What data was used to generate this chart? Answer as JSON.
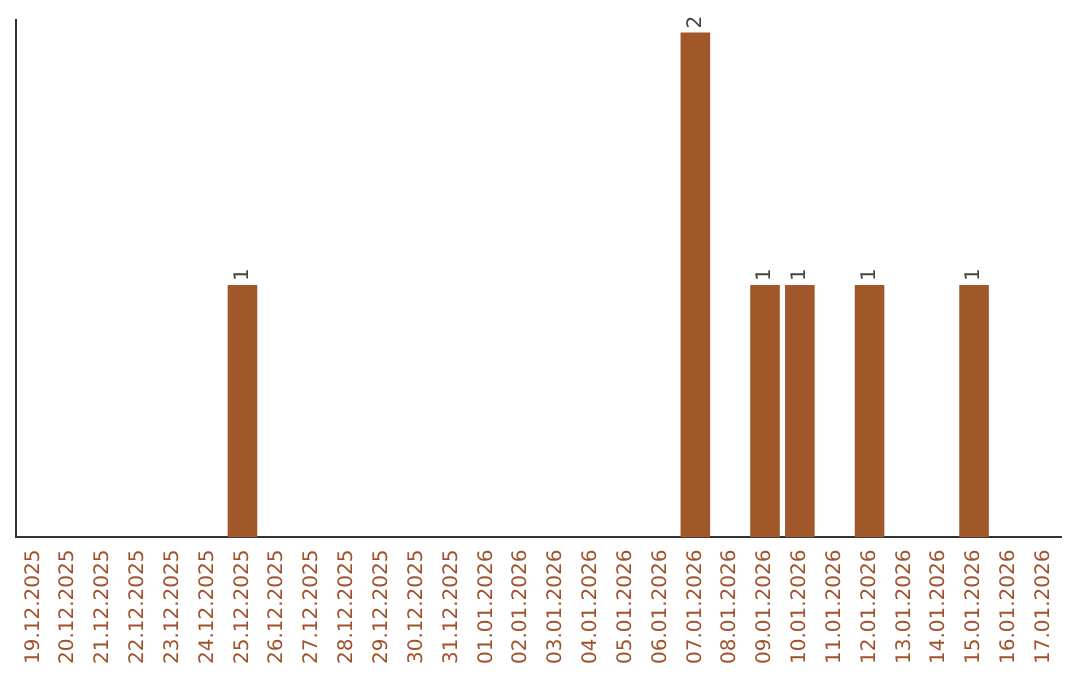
{
  "chart_data": {
    "type": "bar",
    "categories": [
      "19.12.2025",
      "20.12.2025",
      "21.12.2025",
      "22.12.2025",
      "23.12.2025",
      "24.12.2025",
      "25.12.2025",
      "26.12.2025",
      "27.12.2025",
      "28.12.2025",
      "29.12.2025",
      "30.12.2025",
      "31.12.2025",
      "01.01.2026",
      "02.01.2026",
      "03.01.2026",
      "04.01.2026",
      "05.01.2026",
      "06.01.2026",
      "07.01.2026",
      "08.01.2026",
      "09.01.2026",
      "10.01.2026",
      "11.01.2026",
      "12.01.2026",
      "13.01.2026",
      "14.01.2026",
      "15.01.2026",
      "16.01.2026",
      "17.01.2026"
    ],
    "values": [
      0,
      0,
      0,
      0,
      0,
      0,
      1,
      0,
      0,
      0,
      0,
      0,
      0,
      0,
      0,
      0,
      0,
      0,
      0,
      2,
      0,
      1,
      1,
      0,
      1,
      0,
      0,
      1,
      0,
      0
    ],
    "value_labels": [
      null,
      null,
      null,
      null,
      null,
      null,
      "1",
      null,
      null,
      null,
      null,
      null,
      null,
      null,
      null,
      null,
      null,
      null,
      null,
      "2",
      null,
      "1",
      "1",
      null,
      "1",
      null,
      null,
      "1",
      null,
      null
    ],
    "color": "#a0572a",
    "ylim": [
      0,
      2.05
    ],
    "tick_labels": "x",
    "grid": false,
    "legend": false
  }
}
